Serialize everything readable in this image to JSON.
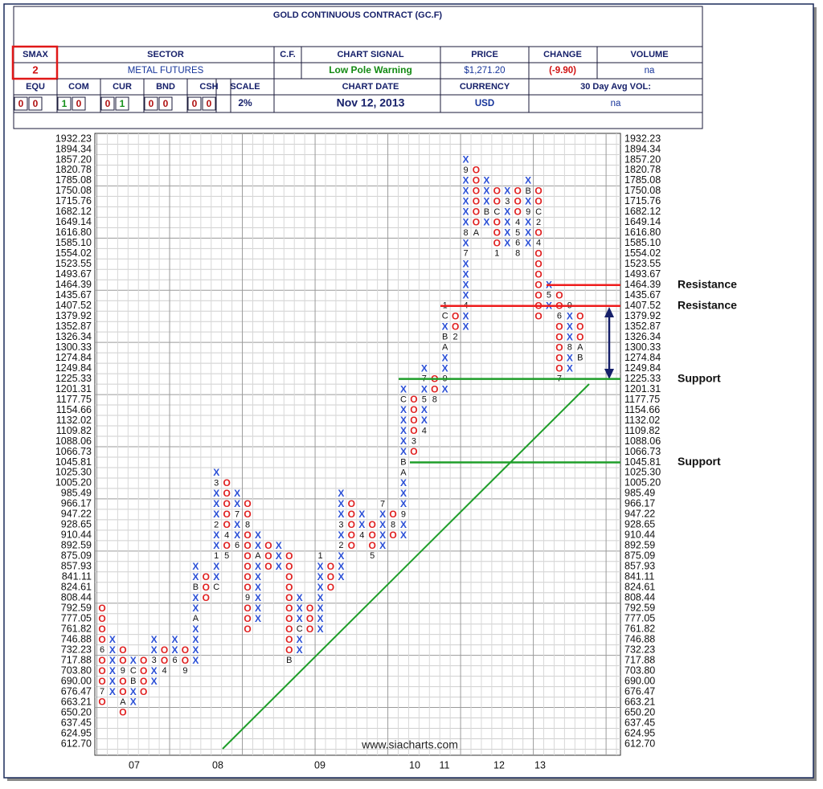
{
  "header": {
    "title": "GOLD CONTINUOUS CONTRACT (GC.F)",
    "smax": {
      "label": "SMAX",
      "value": 2
    },
    "sector": {
      "label": "SECTOR",
      "value": "METAL FUTURES"
    },
    "cf": {
      "label": "C.F."
    },
    "chart_signal": {
      "label": "CHART SIGNAL",
      "value": "Low Pole Warning"
    },
    "price": {
      "label": "PRICE",
      "value": "$1,271.20"
    },
    "change": {
      "label": "CHANGE",
      "value": "(-9.90)"
    },
    "volume": {
      "label": "VOLUME",
      "value": "na"
    },
    "scores": [
      {
        "label": "EQU",
        "values": [
          0,
          0
        ]
      },
      {
        "label": "COM",
        "values": [
          1,
          0
        ]
      },
      {
        "label": "CUR",
        "values": [
          0,
          1
        ]
      },
      {
        "label": "BND",
        "values": [
          0,
          0
        ]
      },
      {
        "label": "CSH",
        "values": [
          0,
          0
        ]
      }
    ],
    "scale": {
      "label": "SCALE",
      "value": "2%"
    },
    "chart_date": {
      "label": "CHART DATE",
      "value": "Nov 12, 2013"
    },
    "currency": {
      "label": "CURRENCY",
      "value": "USD"
    },
    "avg_volume": {
      "label": "30 Day Avg VOL:",
      "value": "na"
    }
  },
  "chart_data": {
    "type": "point_and_figure",
    "log_scale": true,
    "grid": true,
    "x_color": "#2a4fd6",
    "o_color": "#e02020",
    "ylim": [
      612.7,
      1932.23
    ],
    "yticks": [
      1932.23,
      1894.34,
      {
        "value": 1857.2,
        "label": "1857.20"
      },
      1820.78,
      1785.08,
      1750.08,
      1715.76,
      1682.12,
      1649.14,
      {
        "value": 1616.8,
        "label": "1616.80"
      },
      {
        "value": 1585.1,
        "label": "1585.10"
      },
      1554.02,
      1523.55,
      1493.67,
      1464.39,
      1435.67,
      1407.52,
      1379.92,
      1352.87,
      1326.34,
      1300.33,
      1274.84,
      1249.84,
      1225.33,
      1201.31,
      1177.75,
      1154.66,
      1132.02,
      1109.82,
      1088.06,
      1066.73,
      1045.81,
      {
        "value": 1025.3,
        "label": "1025.30"
      },
      {
        "value": 1005.2,
        "label": "1005.20"
      },
      985.49,
      966.17,
      947.22,
      928.65,
      910.44,
      892.59,
      875.09,
      857.93,
      841.11,
      824.61,
      808.44,
      792.59,
      777.05,
      761.82,
      746.88,
      732.23,
      717.88,
      {
        "value": 703.8,
        "label": "703.80"
      },
      {
        "value": 690,
        "label": "690.00"
      },
      676.47,
      663.21,
      {
        "value": 650.2,
        "label": "650.20"
      },
      637.45,
      624.95,
      {
        "value": 612.7,
        "label": "612.70"
      }
    ],
    "columns": [
      {
        "type": "O",
        "from": 663.21,
        "to": 792.59,
        "months": [
          {
            "level": 732.23,
            "label": "6"
          },
          {
            "level": 676.47,
            "label": "7"
          }
        ]
      },
      {
        "type": "X",
        "from": 676.47,
        "to": 746.88,
        "months": []
      },
      {
        "type": "O",
        "from": 650.2,
        "to": 732.23,
        "months": [
          {
            "level": 703.8,
            "label": "9"
          },
          {
            "level": 663.21,
            "label": "A"
          }
        ]
      },
      {
        "type": "X",
        "from": 663.21,
        "to": 717.88,
        "months": [
          {
            "level": 690,
            "label": "B"
          },
          {
            "level": 703.8,
            "label": "C"
          }
        ]
      },
      {
        "type": "O",
        "from": 676.47,
        "to": 717.88,
        "months": []
      },
      {
        "type": "X",
        "from": 690,
        "to": 746.88,
        "months": [
          {
            "level": 717.88,
            "label": "3"
          }
        ]
      },
      {
        "type": "O",
        "from": 703.8,
        "to": 732.23,
        "months": [
          {
            "level": 703.8,
            "label": "4"
          }
        ]
      },
      {
        "type": "X",
        "from": 717.88,
        "to": 746.88,
        "months": [
          {
            "level": 717.88,
            "label": "6"
          }
        ]
      },
      {
        "type": "O",
        "from": 703.8,
        "to": 732.23,
        "months": [
          {
            "level": 703.8,
            "label": "9"
          }
        ]
      },
      {
        "type": "X",
        "from": 717.88,
        "to": 857.93,
        "months": [
          {
            "level": 777.05,
            "label": "A"
          },
          {
            "level": 824.61,
            "label": "B"
          }
        ]
      },
      {
        "type": "O",
        "from": 808.44,
        "to": 841.11,
        "months": []
      },
      {
        "type": "X",
        "from": 824.61,
        "to": 1025.3,
        "months": [
          {
            "level": 824.61,
            "label": "C"
          },
          {
            "level": 875.09,
            "label": "1"
          },
          {
            "level": 928.65,
            "label": "2"
          },
          {
            "level": 1005.2,
            "label": "3"
          }
        ]
      },
      {
        "type": "O",
        "from": 875.09,
        "to": 1005.2,
        "months": [
          {
            "level": 910.44,
            "label": "4"
          },
          {
            "level": 875.09,
            "label": "5"
          }
        ]
      },
      {
        "type": "X",
        "from": 892.59,
        "to": 985.49,
        "months": [
          {
            "level": 892.59,
            "label": "6"
          },
          {
            "level": 947.22,
            "label": "7"
          }
        ]
      },
      {
        "type": "O",
        "from": 761.82,
        "to": 966.17,
        "months": [
          {
            "level": 928.65,
            "label": "8"
          },
          {
            "level": 808.44,
            "label": "9"
          }
        ]
      },
      {
        "type": "X",
        "from": 777.05,
        "to": 910.44,
        "months": [
          {
            "level": 875.09,
            "label": "A"
          }
        ]
      },
      {
        "type": "O",
        "from": 857.93,
        "to": 892.59,
        "months": []
      },
      {
        "type": "X",
        "from": 857.93,
        "to": 892.59,
        "months": []
      },
      {
        "type": "O",
        "from": 717.88,
        "to": 875.09,
        "months": [
          {
            "level": 717.88,
            "label": "B"
          }
        ]
      },
      {
        "type": "X",
        "from": 732.23,
        "to": 808.44,
        "months": [
          {
            "level": 761.82,
            "label": "C"
          }
        ]
      },
      {
        "type": "O",
        "from": 761.82,
        "to": 792.59,
        "months": []
      },
      {
        "type": "X",
        "from": 761.82,
        "to": 875.09,
        "months": [
          {
            "level": 875.09,
            "label": "1"
          }
        ]
      },
      {
        "type": "O",
        "from": 824.61,
        "to": 857.93,
        "months": []
      },
      {
        "type": "X",
        "from": 841.11,
        "to": 985.49,
        "months": [
          {
            "level": 892.59,
            "label": "2"
          },
          {
            "level": 928.65,
            "label": "3"
          }
        ]
      },
      {
        "type": "O",
        "from": 892.59,
        "to": 966.17,
        "months": []
      },
      {
        "type": "X",
        "from": 910.44,
        "to": 947.22,
        "months": [
          {
            "level": 910.44,
            "label": "4"
          }
        ]
      },
      {
        "type": "O",
        "from": 875.09,
        "to": 928.65,
        "months": [
          {
            "level": 875.09,
            "label": "5"
          }
        ]
      },
      {
        "type": "X",
        "from": 892.59,
        "to": 966.17,
        "months": [
          {
            "level": 966.17,
            "label": "7"
          }
        ]
      },
      {
        "type": "O",
        "from": 910.44,
        "to": 947.22,
        "months": [
          {
            "level": 928.65,
            "label": "8"
          }
        ]
      },
      {
        "type": "X",
        "from": 910.44,
        "to": 1201.31,
        "months": [
          {
            "level": 947.22,
            "label": "9"
          },
          {
            "level": 1025.3,
            "label": "A"
          },
          {
            "level": 1045.81,
            "label": "B"
          },
          {
            "level": 1177.75,
            "label": "C"
          }
        ]
      },
      {
        "type": "O",
        "from": 1066.73,
        "to": 1177.75,
        "months": [
          {
            "level": 1088.06,
            "label": "3"
          }
        ]
      },
      {
        "type": "X",
        "from": 1109.82,
        "to": 1249.84,
        "months": [
          {
            "level": 1109.82,
            "label": "4"
          },
          {
            "level": 1177.75,
            "label": "5"
          },
          {
            "level": 1225.33,
            "label": "7"
          }
        ]
      },
      {
        "type": "O",
        "from": 1177.75,
        "to": 1225.33,
        "months": [
          {
            "level": 1177.75,
            "label": "8"
          }
        ]
      },
      {
        "type": "X",
        "from": 1201.31,
        "to": 1407.52,
        "months": [
          {
            "level": 1225.33,
            "label": "9"
          },
          {
            "level": 1300.33,
            "label": "A"
          },
          {
            "level": 1326.34,
            "label": "B"
          },
          {
            "level": 1379.92,
            "label": "C"
          },
          {
            "level": 1407.52,
            "label": "1"
          }
        ]
      },
      {
        "type": "O",
        "from": 1326.34,
        "to": 1379.92,
        "months": [
          {
            "level": 1326.34,
            "label": "2"
          }
        ]
      },
      {
        "type": "X",
        "from": 1352.87,
        "to": 1857.2,
        "months": [
          {
            "level": 1407.52,
            "label": "4"
          },
          {
            "level": 1554.02,
            "label": "7"
          },
          {
            "level": 1616.8,
            "label": "8"
          },
          {
            "level": 1820.78,
            "label": "9"
          }
        ]
      },
      {
        "type": "O",
        "from": 1616.8,
        "to": 1820.78,
        "months": [
          {
            "level": 1616.8,
            "label": "A"
          }
        ]
      },
      {
        "type": "X",
        "from": 1649.14,
        "to": 1785.08,
        "months": [
          {
            "level": 1682.12,
            "label": "B"
          }
        ]
      },
      {
        "type": "O",
        "from": 1554.02,
        "to": 1750.08,
        "months": [
          {
            "level": 1682.12,
            "label": "C"
          },
          {
            "level": 1554.02,
            "label": "1"
          }
        ]
      },
      {
        "type": "X",
        "from": 1585.1,
        "to": 1750.08,
        "months": [
          {
            "level": 1715.76,
            "label": "3"
          }
        ]
      },
      {
        "type": "O",
        "from": 1554.02,
        "to": 1750.08,
        "months": [
          {
            "level": 1649.14,
            "label": "4"
          },
          {
            "level": 1616.8,
            "label": "5"
          },
          {
            "level": 1585.1,
            "label": "6"
          },
          {
            "level": 1554.02,
            "label": "8"
          }
        ]
      },
      {
        "type": "X",
        "from": 1585.1,
        "to": 1785.08,
        "months": [
          {
            "level": 1682.12,
            "label": "9"
          },
          {
            "level": 1750.08,
            "label": "B"
          }
        ]
      },
      {
        "type": "O",
        "from": 1379.92,
        "to": 1750.08,
        "months": [
          {
            "level": 1682.12,
            "label": "C"
          },
          {
            "level": 1649.14,
            "label": "2"
          },
          {
            "level": 1585.1,
            "label": "4"
          }
        ]
      },
      {
        "type": "X",
        "from": 1407.52,
        "to": 1464.39,
        "months": [
          {
            "level": 1435.67,
            "label": "5"
          }
        ]
      },
      {
        "type": "O",
        "from": 1225.33,
        "to": 1435.67,
        "months": [
          {
            "level": 1379.92,
            "label": "6"
          },
          {
            "level": 1225.33,
            "label": "7"
          }
        ]
      },
      {
        "type": "X",
        "from": 1249.84,
        "to": 1407.52,
        "months": [
          {
            "level": 1300.33,
            "label": "8"
          },
          {
            "level": 1407.52,
            "label": "9"
          }
        ]
      },
      {
        "type": "O",
        "from": 1274.84,
        "to": 1379.92,
        "months": [
          {
            "level": 1300.33,
            "label": "A"
          },
          {
            "level": 1274.84,
            "label": "B"
          }
        ]
      }
    ],
    "years": [
      "07",
      "08",
      "09",
      "10",
      "11",
      "12",
      "13"
    ],
    "lines": [
      {
        "label": "Resistance",
        "level": 1464.39,
        "color": "#ee1c1c"
      },
      {
        "label": "Resistance",
        "level": 1407.52,
        "color": "#ee1c1c"
      },
      {
        "label": "Support",
        "level": 1225.33,
        "color": "#1f9e2a"
      },
      {
        "label": "Support",
        "level": 1045.81,
        "color": "#1f9e2a"
      }
    ],
    "watermark": "www.siacharts.com"
  }
}
